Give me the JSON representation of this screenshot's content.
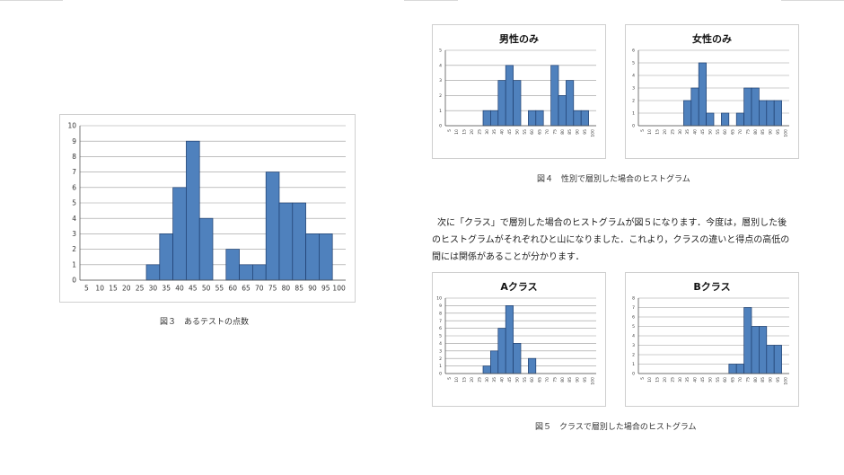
{
  "colors": {
    "bar": "#4f81bd",
    "bar_stroke": "#1f3f6f",
    "grid": "#999999",
    "axis": "#555555"
  },
  "figure3": {
    "caption": "図３　あるテストの点数"
  },
  "figure4": {
    "caption": "図４　性別で層別した場合のヒストグラム"
  },
  "figure5": {
    "caption": "図５　クラスで層別した場合のヒストグラム"
  },
  "paragraph": {
    "lines": [
      "次に「クラス」で層別した場合のヒストグラムが図５になります．今度は，層別した後",
      "のヒストグラムがそれぞれひと山になりました．これより，クラスの違いと得点の高低の",
      "間には関係があることが分かります．"
    ]
  },
  "chart_data": [
    {
      "id": "all",
      "type": "bar",
      "title": "",
      "categories": [
        "5",
        "10",
        "15",
        "20",
        "25",
        "30",
        "35",
        "40",
        "45",
        "50",
        "55",
        "60",
        "65",
        "70",
        "75",
        "80",
        "85",
        "90",
        "95",
        "100"
      ],
      "values": [
        0,
        0,
        0,
        0,
        0,
        1,
        3,
        6,
        9,
        4,
        0,
        2,
        1,
        1,
        7,
        5,
        5,
        3,
        3,
        0
      ],
      "ylim": [
        0,
        10
      ],
      "yticks": [
        0,
        1,
        2,
        3,
        4,
        5,
        6,
        7,
        8,
        9,
        10
      ],
      "grid": true,
      "legend": "none"
    },
    {
      "id": "male",
      "type": "bar",
      "title": "男性のみ",
      "categories": [
        "5",
        "10",
        "15",
        "20",
        "25",
        "30",
        "35",
        "40",
        "45",
        "50",
        "55",
        "60",
        "65",
        "70",
        "75",
        "80",
        "85",
        "90",
        "95",
        "100"
      ],
      "values": [
        0,
        0,
        0,
        0,
        0,
        1,
        1,
        3,
        4,
        3,
        0,
        1,
        1,
        0,
        4,
        2,
        3,
        1,
        1,
        0
      ],
      "ylim": [
        0,
        5
      ],
      "yticks": [
        0,
        1,
        2,
        3,
        4,
        5
      ],
      "grid": true,
      "legend": "none"
    },
    {
      "id": "female",
      "type": "bar",
      "title": "女性のみ",
      "categories": [
        "5",
        "10",
        "15",
        "20",
        "25",
        "30",
        "35",
        "40",
        "45",
        "50",
        "55",
        "60",
        "65",
        "70",
        "75",
        "80",
        "85",
        "90",
        "95",
        "100"
      ],
      "values": [
        0,
        0,
        0,
        0,
        0,
        0,
        2,
        3,
        5,
        1,
        0,
        1,
        0,
        1,
        3,
        3,
        2,
        2,
        2,
        0
      ],
      "ylim": [
        0,
        6
      ],
      "yticks": [
        0,
        1,
        2,
        3,
        4,
        5,
        6
      ],
      "grid": true,
      "legend": "none"
    },
    {
      "id": "classA",
      "type": "bar",
      "title": "Aクラス",
      "categories": [
        "5",
        "10",
        "15",
        "20",
        "25",
        "30",
        "35",
        "40",
        "45",
        "50",
        "55",
        "60",
        "65",
        "70",
        "75",
        "80",
        "85",
        "90",
        "95",
        "100"
      ],
      "values": [
        0,
        0,
        0,
        0,
        0,
        1,
        3,
        6,
        9,
        4,
        0,
        2,
        0,
        0,
        0,
        0,
        0,
        0,
        0,
        0
      ],
      "ylim": [
        0,
        10
      ],
      "yticks": [
        0,
        1,
        2,
        3,
        4,
        5,
        6,
        7,
        8,
        9,
        10
      ],
      "grid": true,
      "legend": "none"
    },
    {
      "id": "classB",
      "type": "bar",
      "title": "Bクラス",
      "categories": [
        "5",
        "10",
        "15",
        "20",
        "25",
        "30",
        "35",
        "40",
        "45",
        "50",
        "55",
        "60",
        "65",
        "70",
        "75",
        "80",
        "85",
        "90",
        "95",
        "100"
      ],
      "values": [
        0,
        0,
        0,
        0,
        0,
        0,
        0,
        0,
        0,
        0,
        0,
        0,
        1,
        1,
        7,
        5,
        5,
        3,
        3,
        0
      ],
      "ylim": [
        0,
        8
      ],
      "yticks": [
        0,
        1,
        2,
        3,
        4,
        5,
        6,
        7,
        8
      ],
      "grid": true,
      "legend": "none"
    }
  ]
}
